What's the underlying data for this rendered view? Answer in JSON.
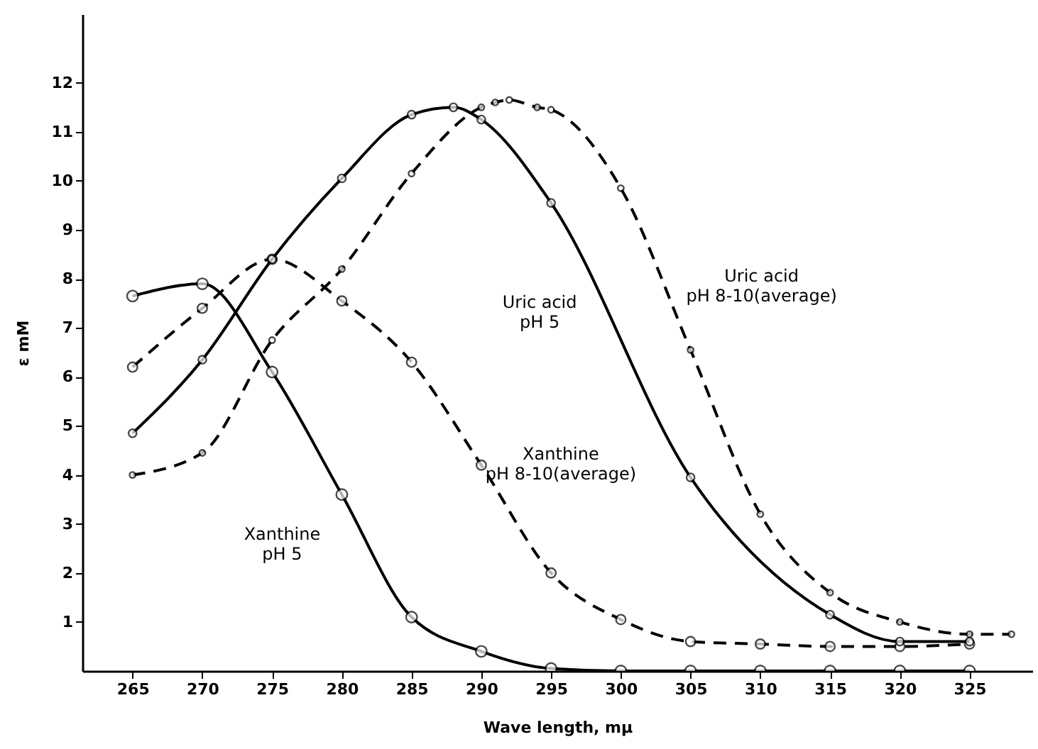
{
  "chart_data": {
    "type": "line",
    "xlabel": "Wave length, mμ",
    "ylabel": "ε mM",
    "xlim": [
      261.4,
      329.5
    ],
    "xticks": [
      265,
      270,
      275,
      280,
      285,
      290,
      295,
      300,
      305,
      310,
      315,
      320,
      325
    ],
    "ylim": [
      0,
      13.4
    ],
    "yticks": [
      1,
      2,
      3,
      4,
      5,
      6,
      7,
      8,
      9,
      10,
      11,
      12
    ],
    "grid": false,
    "legend": false,
    "marker": "circle",
    "series": [
      {
        "name": "Xanthine\npH 5",
        "color": "#000000",
        "line_style": "solid",
        "x": [
          265,
          270,
          275,
          280,
          285,
          290,
          295,
          300,
          305,
          310,
          315,
          320,
          325
        ],
        "values": [
          7.65,
          7.9,
          6.1,
          3.6,
          1.1,
          0.4,
          0.05,
          0,
          0,
          0,
          0,
          0,
          0
        ]
      },
      {
        "name": "Xanthine\npH 8-10(average)",
        "color": "#000000",
        "line_style": "dashed",
        "x": [
          265,
          270,
          275,
          280,
          285,
          290,
          295,
          300,
          305,
          310,
          315,
          320,
          325
        ],
        "values": [
          6.2,
          7.4,
          8.4,
          7.55,
          6.3,
          4.2,
          2.0,
          1.05,
          0.6,
          0.55,
          0.5,
          0.5,
          0.55
        ]
      },
      {
        "name": "Uric acid\npH 5",
        "color": "#000000",
        "line_style": "solid",
        "x": [
          265,
          270,
          275,
          280,
          285,
          288,
          290,
          295,
          305,
          315,
          320,
          325
        ],
        "values": [
          4.85,
          6.35,
          8.4,
          10.05,
          11.35,
          11.5,
          11.25,
          9.55,
          3.95,
          1.15,
          0.6,
          0.6
        ]
      },
      {
        "name": "Uric acid\npH 8-10(average)",
        "color": "#000000",
        "line_style": "dashed",
        "x": [
          265,
          270,
          275,
          280,
          285,
          290,
          291,
          292,
          294,
          295,
          300,
          305,
          310,
          315,
          320,
          325,
          328
        ],
        "values": [
          4.0,
          4.45,
          6.75,
          8.2,
          10.15,
          11.5,
          11.6,
          11.65,
          11.5,
          11.45,
          9.85,
          6.55,
          3.2,
          1.6,
          1.0,
          0.75,
          0.75
        ]
      }
    ]
  }
}
